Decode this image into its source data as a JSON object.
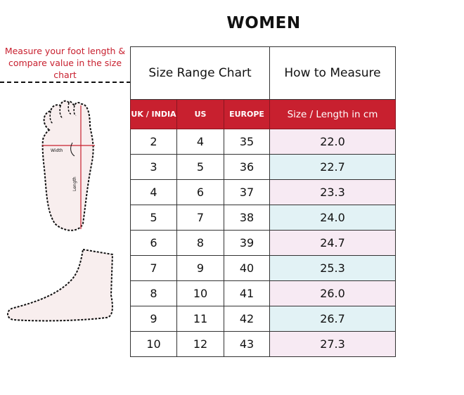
{
  "title": "WOMEN",
  "note": "Measure your foot length & compare value in the size chart",
  "foot_labels": {
    "width": "Width",
    "length": "Length"
  },
  "headers": {
    "size_range": "Size Range Chart",
    "how_to": "How to Measure",
    "cols": [
      "UK / INDIA",
      "US",
      "EUROPE",
      "Size / Length in cm"
    ]
  },
  "rows": [
    [
      "2",
      "4",
      "35",
      "22.0"
    ],
    [
      "3",
      "5",
      "36",
      "22.7"
    ],
    [
      "4",
      "6",
      "37",
      "23.3"
    ],
    [
      "5",
      "7",
      "38",
      "24.0"
    ],
    [
      "6",
      "8",
      "39",
      "24.7"
    ],
    [
      "7",
      "9",
      "40",
      "25.3"
    ],
    [
      "8",
      "10",
      "41",
      "26.0"
    ],
    [
      "9",
      "11",
      "42",
      "26.7"
    ],
    [
      "10",
      "12",
      "43",
      "27.3"
    ]
  ],
  "colors": {
    "accent": "#c8202f",
    "row_pink": "#f7eaf3",
    "row_blue": "#e2f2f5"
  }
}
